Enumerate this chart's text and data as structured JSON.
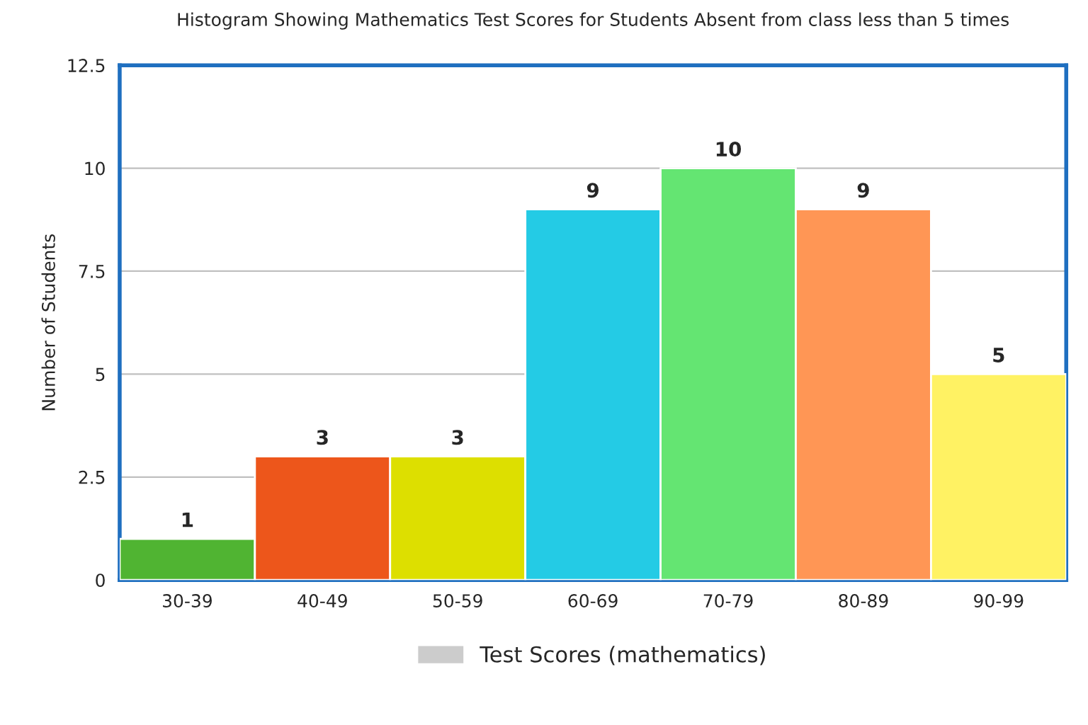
{
  "chart_data": {
    "type": "bar",
    "title": "Histogram Showing Mathematics Test Scores for Students Absent from class less than 5 times",
    "ylabel": "Number of Students",
    "categories": [
      "30-39",
      "40-49",
      "50-59",
      "60-69",
      "70-79",
      "80-89",
      "90-99"
    ],
    "series": [
      {
        "name": "Test Scores (mathematics)",
        "color": "#cccccc",
        "colors": [
          "#50b432",
          "#ed561b",
          "#dddf00",
          "#24cbe5",
          "#64e572",
          "#ff9655",
          "#fff263"
        ],
        "values": [
          1,
          3,
          3,
          9,
          10,
          9,
          5
        ]
      }
    ],
    "ylim": [
      0,
      12.5
    ],
    "yticks": [
      0,
      2.5,
      5,
      7.5,
      10,
      12.5
    ],
    "grid": "y",
    "legend": "bottom",
    "data_labels": true
  }
}
